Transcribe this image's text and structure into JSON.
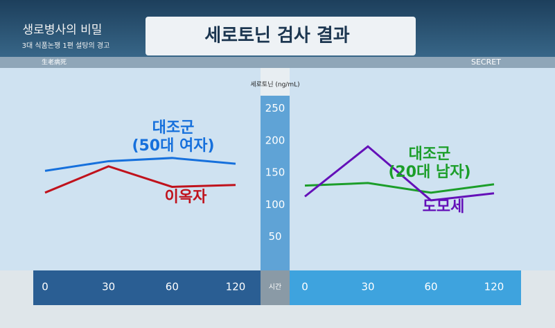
{
  "header": {
    "title": "세로토닌 검사 결과",
    "show": "생로병사의 비밀",
    "episode": "3대 식품논쟁 1편 설탕의 경고",
    "hanja": "生老病死",
    "logo": "SECRET"
  },
  "chart_data": [
    {
      "type": "line",
      "y_label": "세로토닌 (ng/mL)",
      "x_label": "시간",
      "categories": [
        "0",
        "30",
        "60",
        "120"
      ],
      "series": [
        {
          "name": "대조군\n(50대 여자)",
          "color": "#1670dc",
          "values": [
            153,
            168,
            173,
            164
          ]
        },
        {
          "name": "이옥자",
          "color": "#c0121c",
          "values": [
            119,
            160,
            128,
            131
          ]
        }
      ],
      "ylim": [
        0,
        270
      ],
      "yticks": [
        50,
        100,
        150,
        200,
        250
      ]
    },
    {
      "type": "line",
      "categories": [
        "0",
        "30",
        "60",
        "120"
      ],
      "series": [
        {
          "name": "대조군\n(20대 남자)",
          "color": "#1c9e2a",
          "values": [
            130,
            134,
            119,
            132
          ]
        },
        {
          "name": "도모세",
          "color": "#6410b8",
          "values": [
            113,
            191,
            107,
            118
          ]
        }
      ],
      "ylim": [
        0,
        270
      ]
    }
  ]
}
